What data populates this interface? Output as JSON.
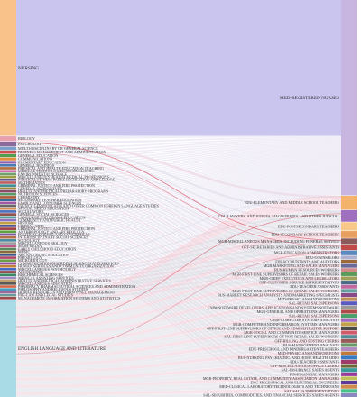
{
  "diagram": {
    "type": "sankey",
    "colors": {
      "flow_main": "#c7c2ee",
      "flow_light": "#e4dff0",
      "flow_pink": "#f0c8d4",
      "flow_red": "#d84a5a",
      "flow_gray": "#d9d9e4",
      "source_nursing": "#f8c28a",
      "source_english": "#a9dbe6",
      "target_nurses": "#c9b6e0"
    },
    "sources": [
      {
        "label": "NURSING",
        "share": 0.335,
        "color": "#f8c28a"
      },
      {
        "label": "BIOLOGY",
        "share": 0.012,
        "color": "#e8a0b0"
      },
      {
        "label": "PSYCHOLOGY",
        "share": 0.012,
        "color": "#8a6a9a"
      },
      {
        "label": "MULTI-DISCIPLINARY OR GENERAL SCIENCE",
        "share": 0.008,
        "color": "#7aa0c8"
      },
      {
        "label": "BUSINESS MANAGEMENT AND ADMINISTRATION",
        "share": 0.008,
        "color": "#c85050"
      },
      {
        "label": "GENERAL EDUCATION",
        "share": 0.007,
        "color": "#50a050"
      },
      {
        "label": "COMMUNICATIONS",
        "share": 0.007,
        "color": "#e09040"
      },
      {
        "label": "ELEMENTARY EDUCATION",
        "share": 0.007,
        "color": "#9060b0"
      },
      {
        "label": "GENERAL BUSINESS",
        "share": 0.006,
        "color": "#4a7ab0"
      },
      {
        "label": "PHYSICAL AND HEALTH EDUCATION TEACHING",
        "share": 0.006,
        "color": "#b07040"
      },
      {
        "label": "MEDICAL TECHNOLOGIES TECHNOLOGIES",
        "share": 0.006,
        "color": "#d070a0"
      },
      {
        "label": "ENVIRONMENTAL SCIENCE",
        "share": 0.006,
        "color": "#70a070"
      },
      {
        "label": "MISCELLANEOUS HEALTH MEDICAL PROFESSIONS",
        "share": 0.006,
        "color": "#a0a040"
      },
      {
        "label": "PHYSICAL FITNESS PARKS RECREATION AND LEISURE",
        "share": 0.006,
        "color": "#606090"
      },
      {
        "label": "MATHEMATICS",
        "share": 0.006,
        "color": "#c06060"
      },
      {
        "label": "CRIMINAL JUSTICE AND FIRE PROTECTION",
        "share": 0.006,
        "color": "#40909a"
      },
      {
        "label": "GENERAL AGRICULTURE",
        "share": 0.006,
        "color": "#9a8a40"
      },
      {
        "label": "HEALTH AND MEDICAL PREPARATORY PROGRAMS",
        "share": 0.006,
        "color": "#8a4a6a"
      },
      {
        "label": "NUTRITION SCIENCES",
        "share": 0.006,
        "color": "#5a9a6a"
      },
      {
        "label": "CHEMISTRY",
        "share": 0.006,
        "color": "#b05a3a"
      },
      {
        "label": "SECONDARY TEACHER EDUCATION",
        "share": 0.006,
        "color": "#3a6a9a"
      },
      {
        "label": "FAMILY AND CONSUMER SCIENCES",
        "share": 0.006,
        "color": "#a05aa0"
      },
      {
        "label": "FRENCH GERMAN LATIN AND OTHER COMMON FOREIGN LANGUAGE STUDIES",
        "share": 0.006,
        "color": "#6a6a6a"
      },
      {
        "label": "SPECIAL NEEDS EDUCATION",
        "share": 0.006,
        "color": "#d09050"
      },
      {
        "label": "SOCIAL WORK",
        "share": 0.006,
        "color": "#5070c0"
      },
      {
        "label": "GENERAL SOCIAL SCIENCES",
        "share": 0.006,
        "color": "#905050"
      },
      {
        "label": "LANGUAGE AND DRAMA EDUCATION",
        "share": 0.006,
        "color": "#50a090"
      },
      {
        "label": "COMMUNITY AND PUBLIC HEALTH",
        "share": 0.006,
        "color": "#9070c0"
      },
      {
        "label": "HISTORY",
        "share": 0.006,
        "color": "#c0a040"
      },
      {
        "label": "LIBERAL ARTS",
        "share": 0.006,
        "color": "#4a4a8a"
      },
      {
        "label": "CRIMINAL JUSTICE AND FIRE PROTECTION",
        "share": 0.006,
        "color": "#a04040"
      },
      {
        "label": "ANTHROPOLOGY AND ARCHEOLOGY",
        "share": 0.006,
        "color": "#60a040"
      },
      {
        "label": "POLITICAL SCIENCE AND GOVERNMENT",
        "share": 0.006,
        "color": "#7a5aa0"
      },
      {
        "label": "INTERDISCIPLINARY SOCIAL SCIENCES",
        "share": 0.006,
        "color": "#b0704a"
      },
      {
        "label": "SOCIOLOGY",
        "share": 0.006,
        "color": "#4a8aa0"
      },
      {
        "label": "MISCELLANEOUS BIOLOGY",
        "share": 0.006,
        "color": "#a0a0a0"
      },
      {
        "label": "MASS MEDIA",
        "share": 0.006,
        "color": "#c05a8a"
      },
      {
        "label": "EARLY CHILDHOOD EDUCATION",
        "share": 0.006,
        "color": "#5a8a5a"
      },
      {
        "label": "MUSIC",
        "share": 0.006,
        "color": "#8a6a3a"
      },
      {
        "label": "ART AND MUSIC EDUCATION",
        "share": 0.006,
        "color": "#3a5a8a"
      },
      {
        "label": "PHYSIOLOGY",
        "share": 0.006,
        "color": "#b04a6a"
      },
      {
        "label": "MICROBIOLOGY",
        "share": 0.006,
        "color": "#6a9a4a"
      },
      {
        "label": "COMMUNICATION DISORDERS SCIENCES AND SERVICES",
        "share": 0.006,
        "color": "#9a4aa0"
      },
      {
        "label": "HUMAN SERVICES AND COMMUNITY ORGANIZATION",
        "share": 0.006,
        "color": "#c0803a"
      },
      {
        "label": "MISCELLANEOUS PSYCHOLOGY",
        "share": 0.006,
        "color": "#4a6ac0"
      },
      {
        "label": "ACCOUNTING",
        "share": 0.006,
        "color": "#8a3a3a"
      },
      {
        "label": "BIOCHEMICAL SCIENCES",
        "share": 0.006,
        "color": "#3a8a6a"
      },
      {
        "label": "MEDICAL ASSISTING SERVICES",
        "share": 0.006,
        "color": "#a08ac0"
      },
      {
        "label": "HEALTH AND MEDICAL ADMINISTRATIVE SERVICES",
        "share": 0.006,
        "color": "#c0a06a"
      },
      {
        "label": "MISCELLANEOUS EDUCATION",
        "share": 0.006,
        "color": "#5a5a5a"
      },
      {
        "label": "PHARMACY PHARMACEUTICAL SCIENCES AND ADMINISTRATION",
        "share": 0.006,
        "color": "#d06a4a"
      },
      {
        "label": "PHILOSOPHY AND RELIGIOUS STUDIES",
        "share": 0.006,
        "color": "#4a9ac0"
      },
      {
        "label": "HUMAN RESOURCES AND PERSONNEL MANAGEMENT",
        "share": 0.006,
        "color": "#9a6a9a"
      },
      {
        "label": "PRE-LAW AND LEGAL STUDIES",
        "share": 0.006,
        "color": "#6a9a9a"
      },
      {
        "label": "MANAGEMENT INFORMATION SYSTEMS AND STATISTICS",
        "share": 0.006,
        "color": "#a04a4a"
      },
      {
        "label": "ENGLISH LANGUAGE AND LITERATURE",
        "share": 0.24,
        "color": "#a9dbe6"
      }
    ],
    "targets": [
      {
        "label": "MED-REGISTERED NURSES",
        "share": 0.42,
        "color": "#c9b6e0"
      },
      {
        "label": "EDU-ELEMENTARY AND MIDDLE SCHOOL TEACHERS",
        "share": 0.03,
        "color": "#f4b36a"
      },
      {
        "label": "LGL-LAWYERS, AND JUDGES, MAGISTRATES, AND OTHER JUDICIAL",
        "share": 0.025,
        "color": "#a070c0"
      },
      {
        "label": "EDU-POSTSECONDARY TEACHERS",
        "share": 0.018,
        "color": "#f8c88a"
      },
      {
        "label": "EDU-SECONDARY SCHOOL TEACHERS",
        "share": 0.015,
        "color": "#e8a060"
      },
      {
        "label": "MGR-MISCELLANEOUS MANAGERS, INCLUDING FUNERAL SERVICE",
        "share": 0.012,
        "color": "#8a5a5a"
      },
      {
        "label": "OFF-SECRETARIES AND ADMINISTRATIVE ASSISTANTS",
        "share": 0.012,
        "color": "#c04a4a"
      },
      {
        "label": "MGR-EDUCATION ADMINISTRATORS",
        "share": 0.01,
        "color": "#5a8ac0"
      },
      {
        "label": "EDU-COUNSELORS",
        "share": 0.008,
        "color": "#b0b0d0"
      },
      {
        "label": "FIN-ACCOUNTANTS AND AUDITORS",
        "share": 0.008,
        "color": "#9a6a3a"
      },
      {
        "label": "MGR-MARKETING AND SALES MANAGERS",
        "share": 0.008,
        "color": "#6a6a9a"
      },
      {
        "label": "BUS-HUMAN RESOURCES WORKERS",
        "share": 0.008,
        "color": "#d08a8a"
      },
      {
        "label": "MGR-FIRST-LINE SUPERVISORS OF RETAIL SALES WORKERS",
        "share": 0.008,
        "color": "#5a9a5a"
      },
      {
        "label": "MGR-CHIEF EXECUTIVES AND LEGISLATORS",
        "share": 0.008,
        "color": "#a0a05a"
      },
      {
        "label": "OFF-CUSTOMER SERVICE REPRESENTATIVES",
        "share": 0.008,
        "color": "#4a6a8a"
      },
      {
        "label": "EDU-TEACHER ASSISTANTS",
        "share": 0.008,
        "color": "#c06aa0"
      },
      {
        "label": "MGR-FIRST-LINE SUPERVISORS OF RETAIL SALES WORKERS",
        "share": 0.008,
        "color": "#6aa0a0"
      },
      {
        "label": "BUS-MARKET RESEARCH ANALYSTS AND MARKETING SPECIALISTS",
        "share": 0.008,
        "color": "#8a4a8a"
      },
      {
        "label": "MED-PHYSICIANS AND SURGEONS",
        "share": 0.008,
        "color": "#c0905a"
      },
      {
        "label": "SAL-RETAIL SALESPERSONS",
        "share": 0.008,
        "color": "#5a5ac0"
      },
      {
        "label": "CMM-SOFTWARE DEVELOPERS, APPLICATIONS AND SYSTEMS SOFTWARE",
        "share": 0.008,
        "color": "#9a9a9a"
      },
      {
        "label": "MGR-GENERAL AND OPERATIONS MANAGERS",
        "share": 0.008,
        "color": "#b04a4a"
      },
      {
        "label": "SAL-RETAIL SALESPERSONS",
        "share": 0.008,
        "color": "#4aa06a"
      },
      {
        "label": "CMM-COMPUTER SYSTEMS ANALYSTS",
        "share": 0.008,
        "color": "#a06ac0"
      },
      {
        "label": "MGR-COMPUTER AND INFORMATION SYSTEMS MANAGERS",
        "share": 0.008,
        "color": "#c0a04a"
      },
      {
        "label": "OFF-FIRST-LINE SUPERVISORS OF OFFICE AND ADMINISTRATIVE SUPPORT",
        "share": 0.008,
        "color": "#4a4a4a"
      },
      {
        "label": "MGR-SOCIAL AND COMMUNITY SERVICE MANAGERS",
        "share": 0.008,
        "color": "#d05a6a"
      },
      {
        "label": "SAL-FIRST-LINE SUPERVISORS OF NON-RETAIL SALES WORKERS",
        "share": 0.008,
        "color": "#5a8a9a"
      },
      {
        "label": "OFF-BILLING AND POSTING CLERKS",
        "share": 0.008,
        "color": "#9a5a5a"
      },
      {
        "label": "BUS-MANAGEMENT ANALYSTS",
        "share": 0.008,
        "color": "#6a9a6a"
      },
      {
        "label": "EDU-PRESCHOOL AND KINDERGARTEN TEACHERS",
        "share": 0.008,
        "color": "#b08ac0"
      },
      {
        "label": "MED-PHYSICIANS AND SURGEONS",
        "share": 0.008,
        "color": "#c07a3a"
      },
      {
        "label": "BUS-NURSING, PSYCHIATRIC, AND HOME HEALTH AIDES",
        "share": 0.008,
        "color": "#3a7ac0"
      },
      {
        "label": "EDU-TEACHER ASSISTANTS",
        "share": 0.008,
        "color": "#a03a6a"
      },
      {
        "label": "OFF-MISCELLANEOUS OFFICE CLERKS",
        "share": 0.008,
        "color": "#6a6a3a"
      },
      {
        "label": "SAL-INSURANCE SALES AGENTS",
        "share": 0.008,
        "color": "#3a9a9a"
      },
      {
        "label": "FIN-FINANCIAL MANAGERS",
        "share": 0.008,
        "color": "#9a3a9a"
      },
      {
        "label": "MGR-PROPERTY, REAL ESTATE, AND COMMUNITY ASSOCIATION MANAGERS",
        "share": 0.008,
        "color": "#c0c05a"
      },
      {
        "label": "ENG-MECHANICAL AND ELECTRICAL ENGINEERS",
        "share": 0.008,
        "color": "#5a3a9a"
      },
      {
        "label": "MED-CLINICAL LABORATORY TECHNOLOGISTS AND TECHNICIANS",
        "share": 0.008,
        "color": "#d08a4a"
      },
      {
        "label": "SAL-SALES REPRESENTATIVES",
        "share": 0.008,
        "color": "#4ac08a"
      },
      {
        "label": "SAL-SECURITIES, COMMODITIES, AND FINANCIAL SERVICES SALES AGENTS",
        "share": 0.008,
        "color": "#8a8ac0"
      }
    ]
  }
}
